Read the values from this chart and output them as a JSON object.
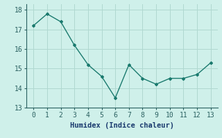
{
  "x": [
    0,
    1,
    2,
    3,
    4,
    5,
    6,
    7,
    8,
    9,
    10,
    11,
    12,
    13
  ],
  "y": [
    17.2,
    17.8,
    17.4,
    16.2,
    15.2,
    14.6,
    13.5,
    15.2,
    14.5,
    14.2,
    14.5,
    14.5,
    14.7,
    15.3
  ],
  "line_color": "#1a7a6e",
  "marker": "D",
  "marker_size": 2.0,
  "line_width": 1.0,
  "bg_color": "#cff0ea",
  "grid_color": "#b0d8d0",
  "xlabel": "Humidex (Indice chaleur)",
  "xlabel_fontsize": 7.5,
  "tick_fontsize": 7,
  "xlim": [
    -0.5,
    13.5
  ],
  "ylim": [
    13,
    18.3
  ],
  "yticks": [
    13,
    14,
    15,
    16,
    17,
    18
  ],
  "xticks": [
    0,
    1,
    2,
    3,
    4,
    5,
    6,
    7,
    8,
    9,
    10,
    11,
    12,
    13
  ]
}
